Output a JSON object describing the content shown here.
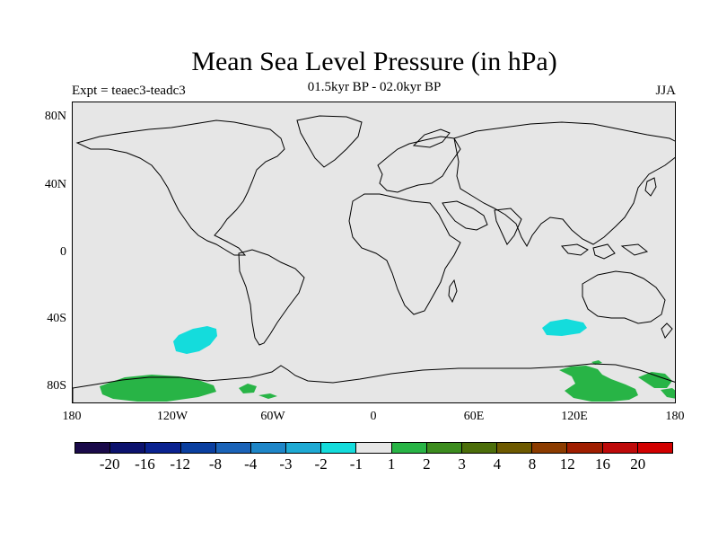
{
  "title": "Mean Sea Level Pressure (in hPa)",
  "subtitle": "01.5kyr BP - 02.0kyr BP",
  "left_label": "Expt = teaec3-teadc3",
  "right_label": "JJA",
  "axes": {
    "y_ticks": [
      "80N",
      "40N",
      "0",
      "40S",
      "80S"
    ],
    "x_ticks": [
      "180",
      "120W",
      "60W",
      "0",
      "60E",
      "120E",
      "180"
    ]
  },
  "colorbar": {
    "labels": [
      "-20",
      "-16",
      "-12",
      "-8",
      "-4",
      "-3",
      "-2",
      "-1",
      "1",
      "2",
      "3",
      "4",
      "8",
      "12",
      "16",
      "20"
    ],
    "colors": [
      "#1a0a4a",
      "#0c126e",
      "#0a2290",
      "#0a3fa0",
      "#1a63b8",
      "#1e86c8",
      "#1eaad4",
      "#14dcdc",
      "#e6e6e6",
      "#28b446",
      "#3c8c1e",
      "#4c6e0a",
      "#6e5a00",
      "#8c3c00",
      "#a01e00",
      "#be0a0a",
      "#d20000"
    ]
  },
  "map": {
    "background": "#e6e6e6",
    "anomalies": [
      {
        "region": "South Pacific",
        "level": "-2 to -1",
        "color": "#14dcdc"
      },
      {
        "region": "Southern Indian Ocean",
        "level": "-2 to -1",
        "color": "#14dcdc"
      },
      {
        "region": "Antarctica (Pacific sector)",
        "level": "1 to 2",
        "color": "#28b446"
      },
      {
        "region": "Antarctica (East)",
        "level": "1 to 2",
        "color": "#28b446"
      }
    ]
  }
}
